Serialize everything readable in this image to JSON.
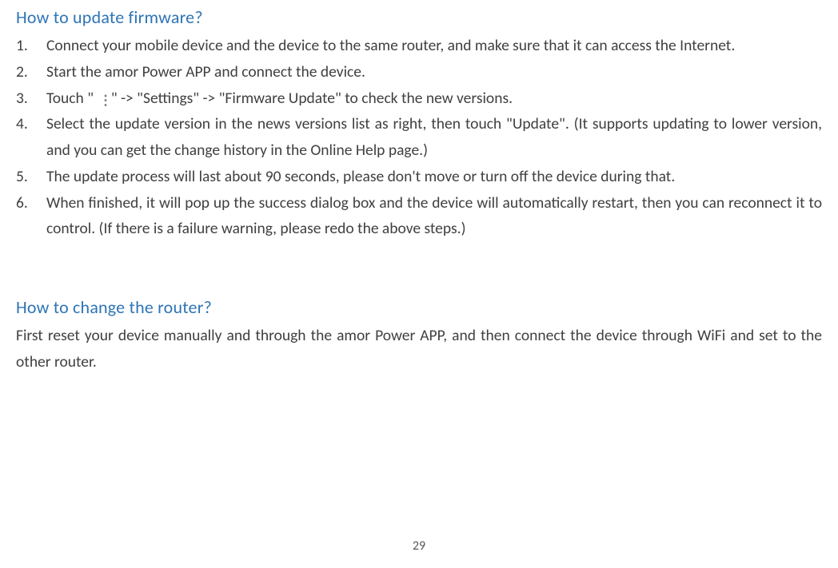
{
  "section1": {
    "heading": "How to update firmware?",
    "items": [
      "Connect your mobile device and the device to the same router, and make sure that it can access the Internet.",
      "Start the amor Power APP and connect the device.",
      {
        "pre": "Touch \" ",
        "post": " \" -> \"Settings\" -> \"Firmware Update\" to check the new versions."
      },
      "Select the update version in the news versions list as right, then touch \"Update\". (It supports updating to lower version, and you can get the change history in the Online Help page.)",
      "The update process will last about 90 seconds, please don't move or turn off the device during that.",
      "When finished, it will pop up the success dialog box and the device will automatically restart, then you can reconnect it to control. (If there is a failure warning, please redo the above steps.)"
    ]
  },
  "section2": {
    "heading": "How to change the router?",
    "body": "First reset your device manually and through the amor Power APP, and then connect the device through WiFi and set to the other router."
  },
  "pageNumber": "29",
  "colors": {
    "heading": "#2e74b5",
    "text": "#404040",
    "pageNum": "#595959",
    "iconDots": "#808080",
    "background": "#ffffff"
  },
  "typography": {
    "heading_fontsize": 22,
    "body_fontsize": 19.5,
    "page_fontsize": 16,
    "line_height": 1.68
  }
}
